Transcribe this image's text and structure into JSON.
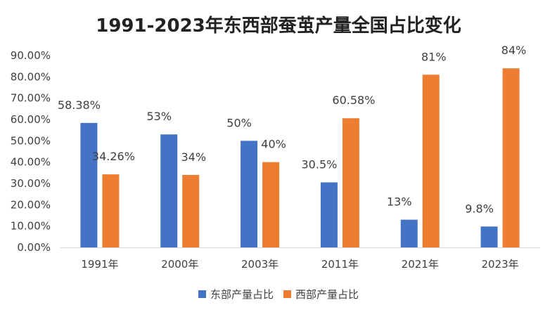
{
  "chart_data": {
    "type": "bar",
    "title": "1991-2023年东西部蚕茧产量全国占比变化",
    "categories": [
      "1991年",
      "2000年",
      "2003年",
      "2011年",
      "2021年",
      "2023年"
    ],
    "series": [
      {
        "name": "东部产量占比",
        "color": "#4472C4",
        "values": [
          58.38,
          53,
          50,
          30.5,
          13,
          9.8
        ],
        "labels": [
          "58.38%",
          "53%",
          "50%",
          "30.5%",
          "13%",
          "9.8%"
        ]
      },
      {
        "name": "西部产量占比",
        "color": "#ED7D31",
        "values": [
          34.26,
          34,
          40,
          60.58,
          81,
          84
        ],
        "labels": [
          "34.26%",
          "34%",
          "40%",
          "60.58%",
          "81%",
          "84%"
        ]
      }
    ],
    "ylim": [
      0,
      90
    ],
    "yticks": [
      "0.00%",
      "10.00%",
      "20.00%",
      "30.00%",
      "40.00%",
      "50.00%",
      "60.00%",
      "70.00%",
      "80.00%",
      "90.00%"
    ],
    "grid": false,
    "legend_position": "bottom"
  }
}
